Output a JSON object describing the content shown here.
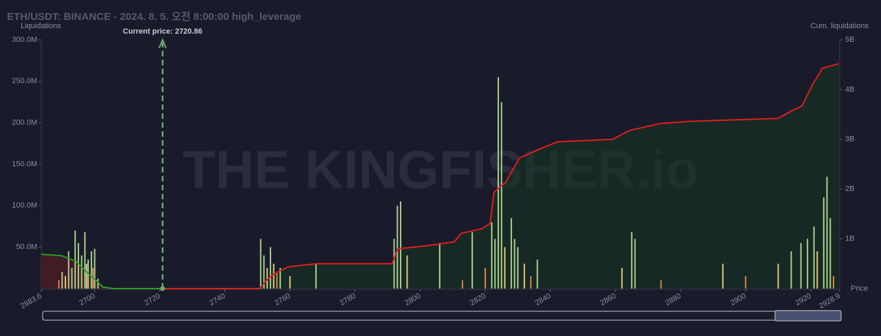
{
  "chart_data": {
    "type": "bar",
    "title": "ETH/USDT: BINANCE - 2024. 8. 5. 오전 8:00:00 high_leverage",
    "y_label": "Liquidations",
    "y2_label": "Cum. liquidations",
    "x_label": "Price",
    "watermark": "THE KINGFISHER.io",
    "current_price": {
      "value": 2720.86,
      "label": "Current price: 2720.86"
    },
    "xlim": [
      2683.6,
      2928.9
    ],
    "xticks": [
      2683.6,
      2700,
      2720,
      2740,
      2760,
      2780,
      2800,
      2820,
      2840,
      2860,
      2880,
      2900,
      2920,
      2928.9
    ],
    "ylim": [
      0,
      300000000
    ],
    "yticks": [
      {
        "value": 50000000,
        "label": "50.0M"
      },
      {
        "value": 100000000,
        "label": "100.0M"
      },
      {
        "value": 150000000,
        "label": "150.0M"
      },
      {
        "value": 200000000,
        "label": "200.0M"
      },
      {
        "value": 250000000,
        "label": "250.0M"
      },
      {
        "value": 300000000,
        "label": "300.0M"
      }
    ],
    "y2lim": [
      0,
      5000000000
    ],
    "y2ticks": [
      {
        "value": 1000000000,
        "label": "1B"
      },
      {
        "value": 2000000000,
        "label": "2B"
      },
      {
        "value": 3000000000,
        "label": "3B"
      },
      {
        "value": 4000000000,
        "label": "4B"
      },
      {
        "value": 5000000000,
        "label": "5B"
      }
    ],
    "series": [
      {
        "color": "#a9d18e",
        "x": [
          2690,
          2692,
          2693,
          2694,
          2695,
          2696,
          2697,
          2698,
          2699,
          2700,
          2701,
          2751,
          2752,
          2754,
          2757,
          2768,
          2792,
          2793,
          2794,
          2806,
          2816,
          2822,
          2823,
          2824,
          2825,
          2828,
          2829,
          2830,
          2836,
          2865,
          2866,
          2914,
          2917,
          2919,
          2921,
          2924,
          2925,
          2926
        ],
        "values": [
          20000000,
          45000000,
          25000000,
          70000000,
          55000000,
          40000000,
          68000000,
          35000000,
          45000000,
          48000000,
          12000000,
          60000000,
          40000000,
          50000000,
          25000000,
          30000000,
          60000000,
          100000000,
          105000000,
          55000000,
          68000000,
          80000000,
          60000000,
          255000000,
          225000000,
          85000000,
          60000000,
          50000000,
          35000000,
          68000000,
          60000000,
          45000000,
          55000000,
          60000000,
          75000000,
          110000000,
          135000000,
          85000000
        ]
      },
      {
        "color": "#e2c77b",
        "x": [
          2691,
          2697.5,
          2753,
          2755,
          2760,
          2796,
          2826,
          2832,
          2862,
          2893,
          2910,
          2922
        ],
        "values": [
          15000000,
          30000000,
          25000000,
          30000000,
          15000000,
          40000000,
          50000000,
          30000000,
          25000000,
          30000000,
          30000000,
          45000000
        ]
      },
      {
        "color": "#d9874c",
        "x": [
          2689,
          2699.5,
          2756,
          2813,
          2820,
          2834,
          2874,
          2900,
          2927
        ],
        "values": [
          10000000,
          25000000,
          20000000,
          10000000,
          25000000,
          15000000,
          10000000,
          15000000,
          15000000
        ]
      }
    ],
    "lines": [
      {
        "color": "#e01e1e",
        "axis": "y2",
        "x": [
          2720.86,
          2750.6,
          2753.4,
          2756.6,
          2759.7,
          2768.2,
          2791.4,
          2793.1,
          2802.0,
          2810.5,
          2812.6,
          2818.9,
          2821.5,
          2822.7,
          2826.3,
          2830.6,
          2838.0,
          2842.2,
          2859.1,
          2864.4,
          2873.9,
          2882.4,
          2909.9,
          2914.1,
          2917.3,
          2920.4,
          2923.6,
          2928.5
        ],
        "values": [
          0,
          0,
          210000000,
          350000000,
          440000000,
          500000000,
          500000000,
          800000000,
          860000000,
          940000000,
          1110000000,
          1200000000,
          1310000000,
          1940000000,
          2140000000,
          2630000000,
          2840000000,
          2950000000,
          3000000000,
          3180000000,
          3320000000,
          3360000000,
          3420000000,
          3570000000,
          3670000000,
          4080000000,
          4430000000,
          4520000000
        ]
      },
      {
        "color": "#2a9a2a",
        "axis": "y2",
        "x": [
          2683.6,
          2689.9,
          2694.2,
          2698.4,
          2702.6,
          2705.8,
          2720.86
        ],
        "values": [
          690000000,
          660000000,
          550000000,
          280000000,
          30000000,
          0,
          0
        ]
      }
    ]
  }
}
